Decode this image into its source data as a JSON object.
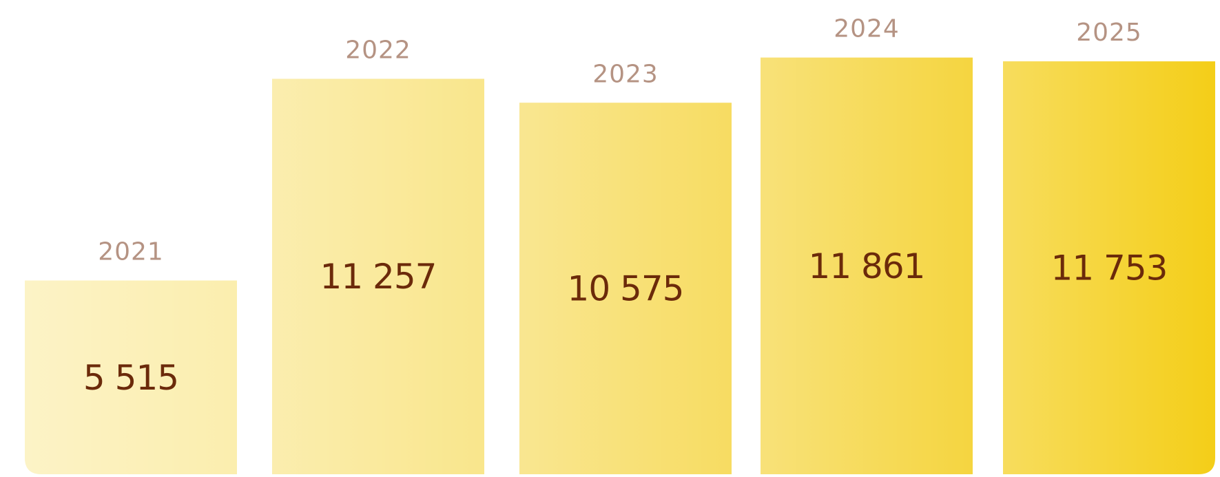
{
  "chart_data": {
    "type": "bar",
    "categories": [
      "2021",
      "2022",
      "2023",
      "2024",
      "2025"
    ],
    "values": [
      5515,
      11257,
      10575,
      11861,
      11753
    ],
    "value_labels": [
      "5 515",
      "11 257",
      "10 575",
      "11 861",
      "11 753"
    ],
    "colors": [
      "#fbeeae",
      "#f9e68c",
      "#f7dc62",
      "#f5d540",
      "#f4ce18"
    ],
    "ylim": [
      0,
      13500
    ]
  }
}
